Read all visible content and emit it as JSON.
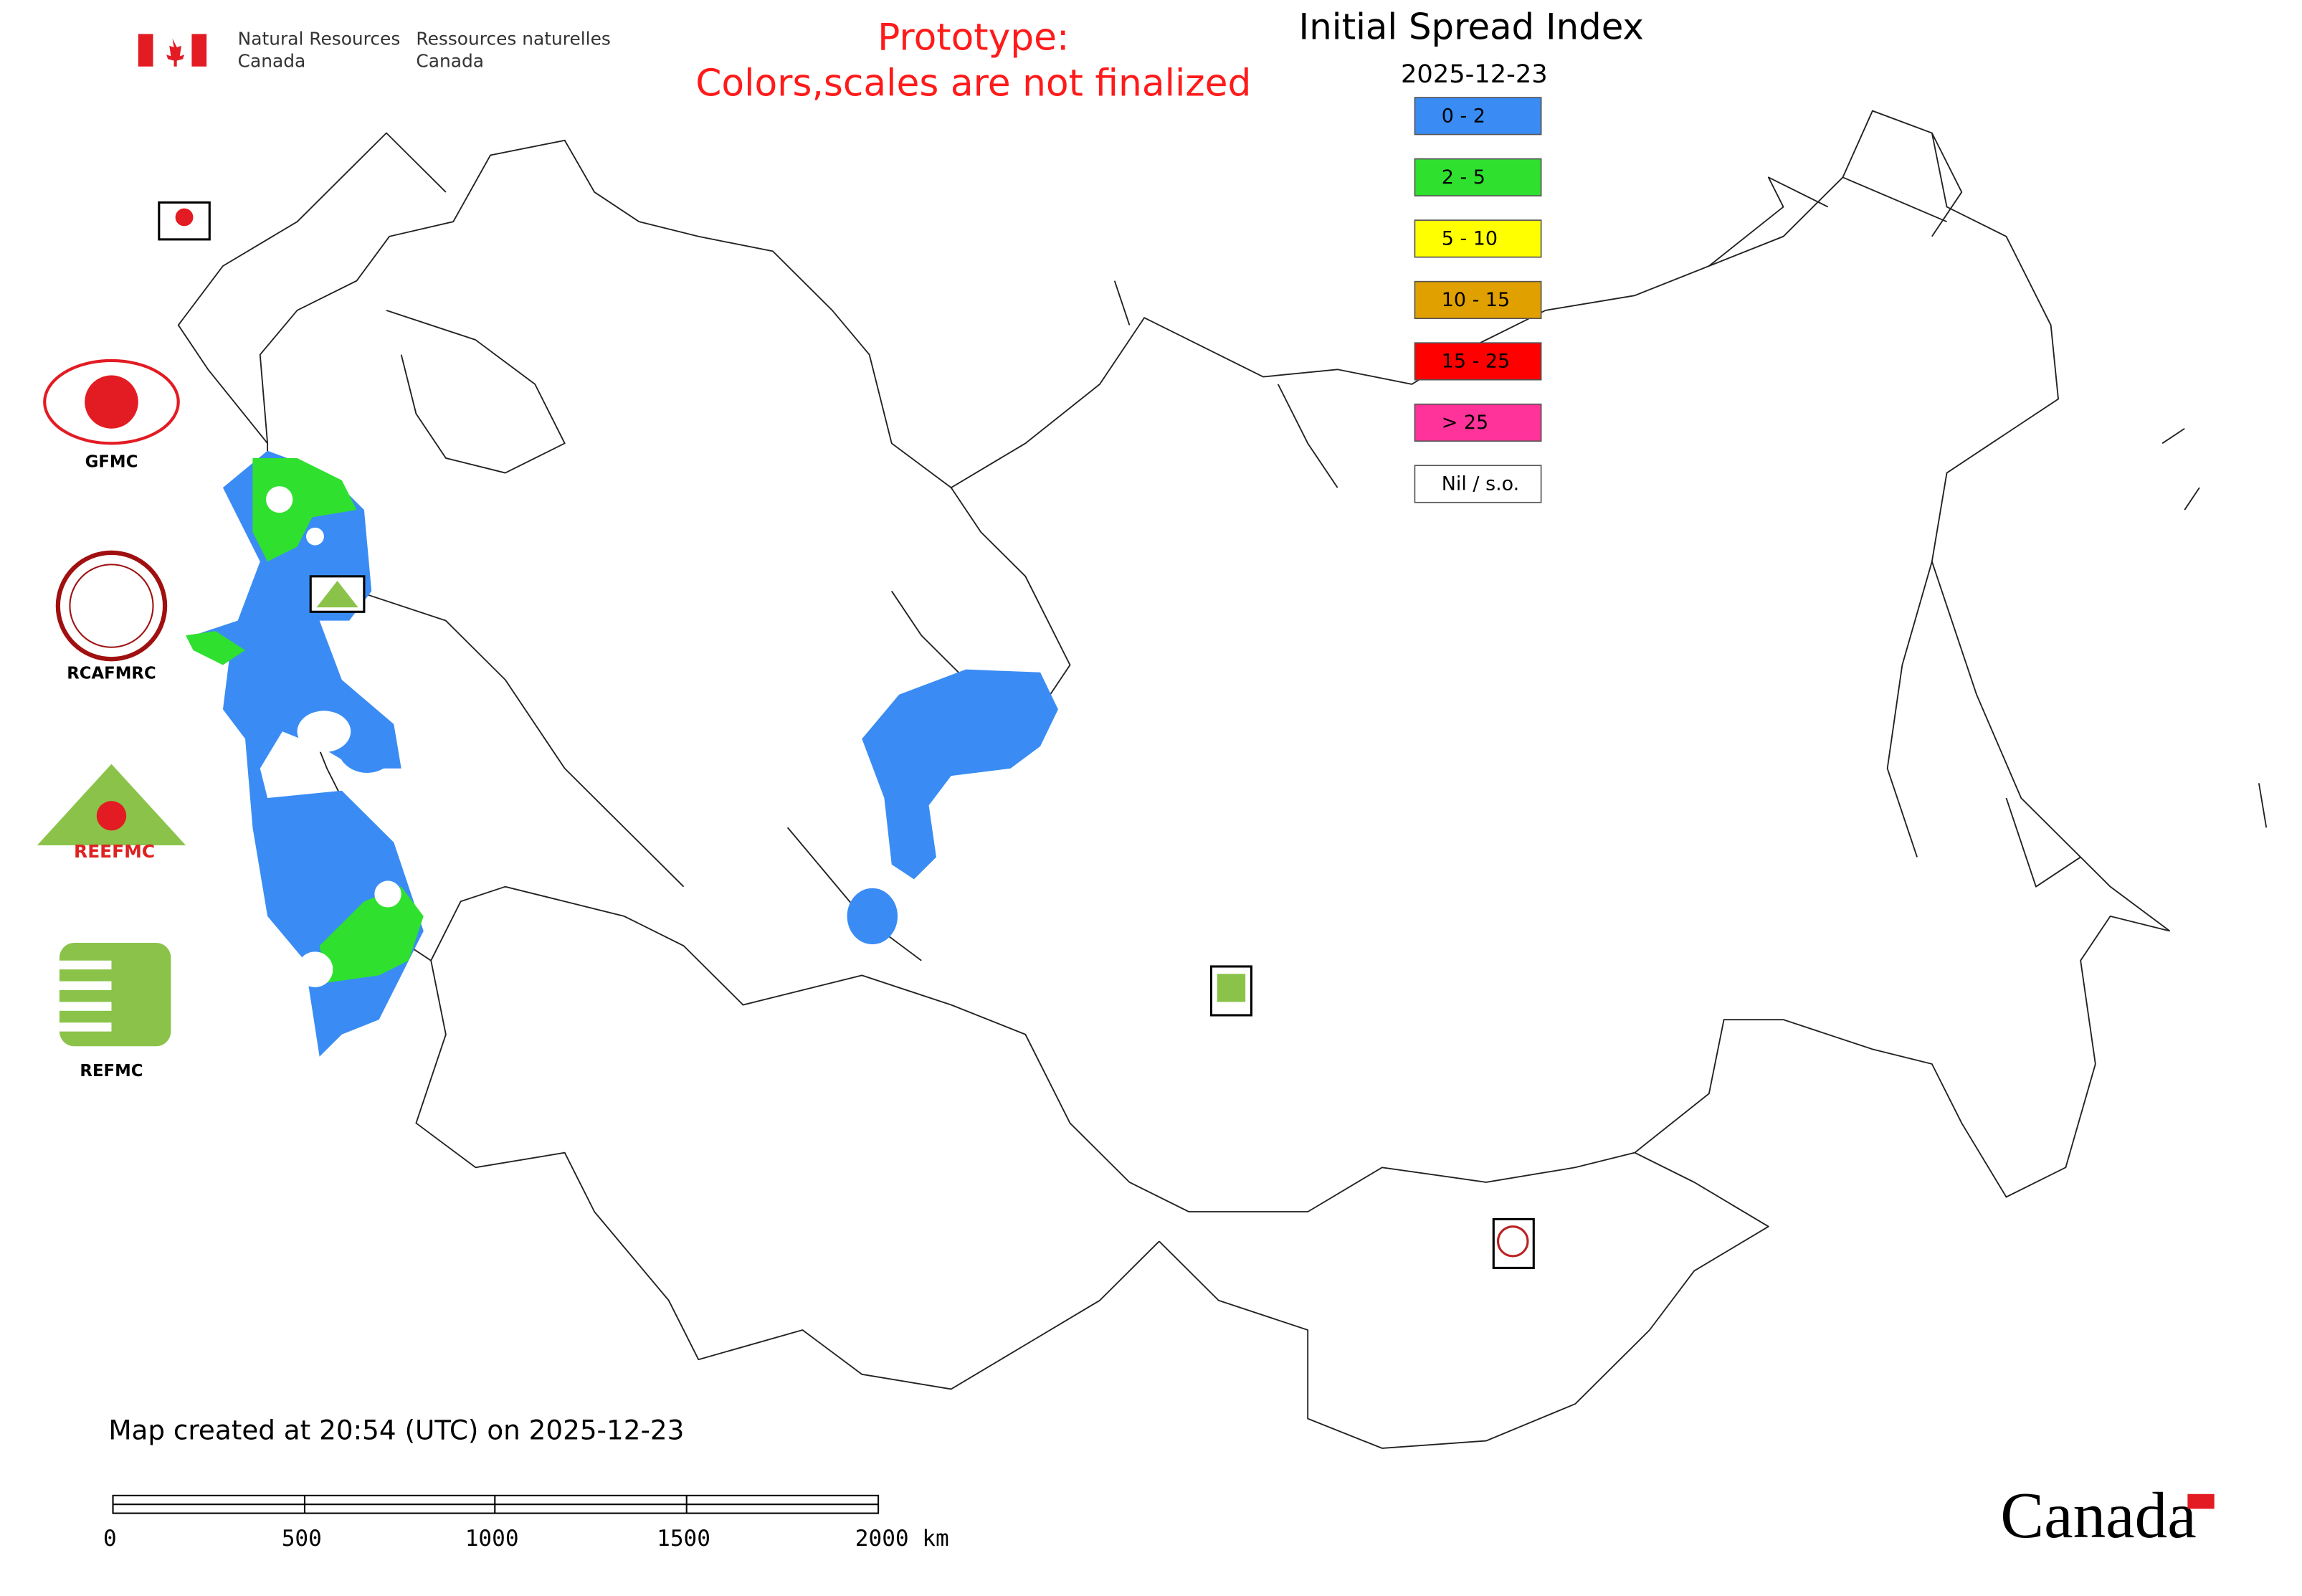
{
  "header": {
    "department_en": [
      "Natural Resources",
      "Canada"
    ],
    "department_fr": [
      "Ressources naturelles",
      "Canada"
    ]
  },
  "notice": [
    "Prototype:",
    "Colors,scales are not finalized"
  ],
  "legend": {
    "title": "Initial Spread Index",
    "date": "2025-12-23",
    "items": [
      {
        "label": "0 - 2",
        "color": "#3a8cf4"
      },
      {
        "label": "2 - 5",
        "color": "#2fe02f"
      },
      {
        "label": "5 - 10",
        "color": "#ffff00"
      },
      {
        "label": "10 - 15",
        "color": "#e0a000"
      },
      {
        "label": "15 - 25",
        "color": "#ff0000"
      },
      {
        "label": "> 25",
        "color": "#ff3399"
      },
      {
        "label": "Nil / s.o.",
        "color": "#ffffff"
      }
    ]
  },
  "logos": [
    "GFMC",
    "RCAFMRC",
    "REEFMC",
    "REFMC"
  ],
  "footer": {
    "created": "Map created at 20:54 (UTC) on 2025-12-23",
    "scale_labels": [
      "0",
      "500",
      "1000",
      "1500",
      "2000 km"
    ],
    "wordmark": "Canada"
  }
}
